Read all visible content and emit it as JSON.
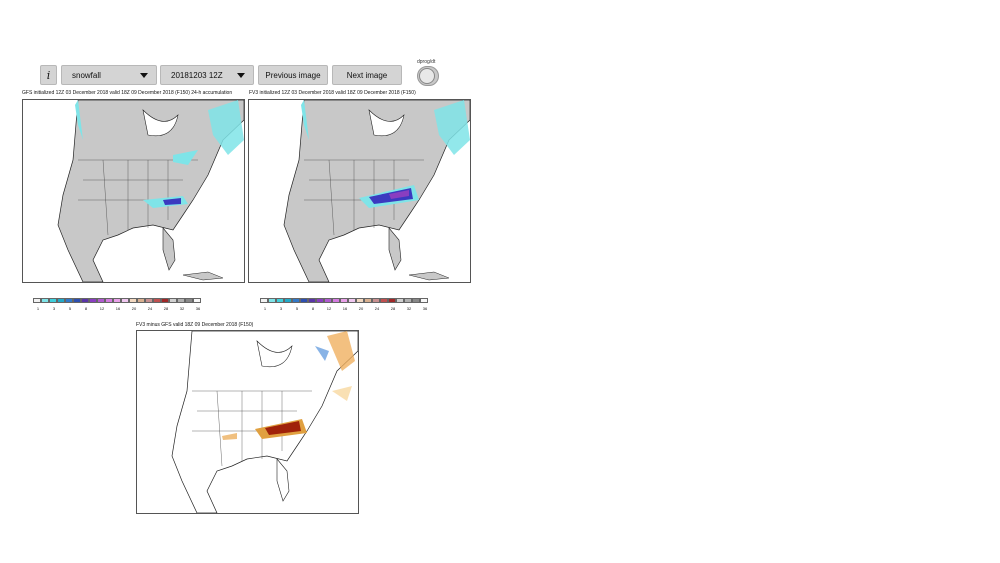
{
  "toolbar": {
    "info_label": "i",
    "field_select": "snowfall",
    "run_select": "20181203 12Z",
    "previous_label": "Previous image",
    "next_label": "Next image",
    "toggle_label": "dprog/dt"
  },
  "maps": {
    "left_title": "GFS initialized 12Z 03 December 2018 valid 18Z 09 December 2018 (F150) 24-h accumulation",
    "right_title": "FV3 initialized 12Z 03 December 2018 valid 18Z 09 December 2018 (F150)",
    "bottom_title": "FV3 minus GFS valid 18Z 09 December 2018 (F150)"
  },
  "colorbar": {
    "labels": [
      "1",
      "2",
      "3",
      "4",
      "5",
      "6",
      "8",
      "10",
      "12",
      "14",
      "16",
      "18",
      "20",
      "22",
      "24",
      "26",
      "28",
      "30",
      "32",
      "34",
      "36"
    ],
    "colors": [
      "#f2f2f2",
      "#7fe4e8",
      "#3fd0dc",
      "#22a9c8",
      "#3278c8",
      "#2d4fb0",
      "#5a35a8",
      "#8a3ec0",
      "#b05ad0",
      "#d47ce0",
      "#e8a0e8",
      "#f0c8f0",
      "#f2d8c0",
      "#d8b090",
      "#c89090",
      "#c05050",
      "#a02828",
      "#d0d0d0",
      "#b0b0b0",
      "#888888",
      "#f8f8f8"
    ]
  },
  "colors": {
    "land": "#c8c8c8",
    "snow_light": "#7fe4e8",
    "snow_heavy": "#3b3ac0",
    "diff_pos": "#a0220a",
    "diff_neg": "#6aa0e0"
  }
}
